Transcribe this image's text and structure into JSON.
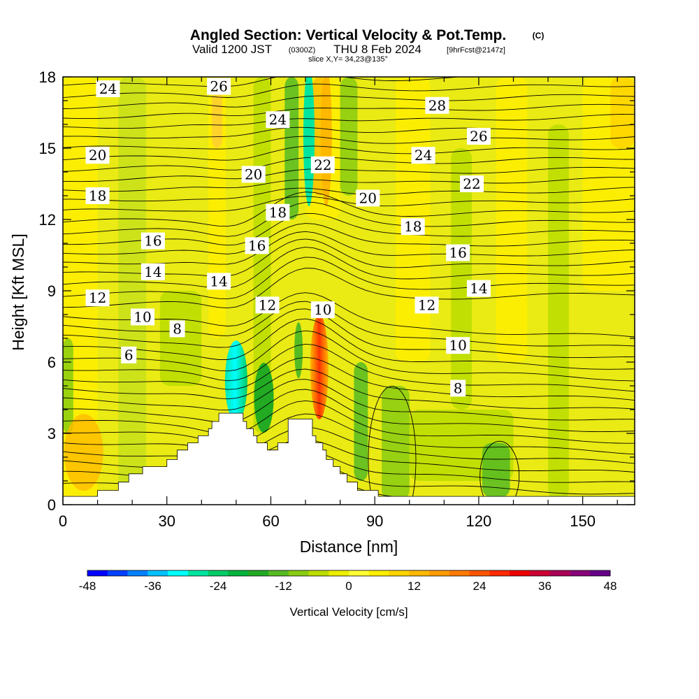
{
  "header": {
    "title": "Angled Section: Vertical Velocity & Pot.Temp.",
    "title_mark": "(C)",
    "valid_a": "Valid 1200 JST",
    "valid_z": "(0300Z)",
    "valid_b": "THU 8 Feb 2024",
    "valid_fcst": "[9hrFcst@2147z]",
    "slice": "slice X,Y= 34,23@135°"
  },
  "chart_data": {
    "type": "heatmap",
    "title": "Angled Section: Vertical Velocity & Pot.Temp.",
    "xlabel": "Distance [nm]",
    "ylabel": "Height [Kft MSL]",
    "xlim": [
      0,
      165
    ],
    "ylim": [
      0,
      18
    ],
    "x_ticks": [
      "0",
      "30",
      "60",
      "90",
      "120",
      "150"
    ],
    "x_tick_values": [
      0,
      30,
      60,
      90,
      120,
      150
    ],
    "y_ticks": [
      "0",
      "3",
      "6",
      "9",
      "12",
      "15",
      "18"
    ],
    "y_tick_values": [
      0,
      3,
      6,
      9,
      12,
      15,
      18
    ],
    "terrain_steps": [
      [
        0,
        0.35
      ],
      [
        10,
        0.35
      ],
      [
        10,
        0.6
      ],
      [
        16,
        0.6
      ],
      [
        16,
        0.95
      ],
      [
        19,
        0.95
      ],
      [
        19,
        1.3
      ],
      [
        23,
        1.3
      ],
      [
        23,
        1.6
      ],
      [
        30,
        1.6
      ],
      [
        30,
        1.9
      ],
      [
        33,
        1.9
      ],
      [
        33,
        2.3
      ],
      [
        36,
        2.3
      ],
      [
        36,
        2.6
      ],
      [
        39,
        2.6
      ],
      [
        39,
        2.9
      ],
      [
        42,
        2.9
      ],
      [
        42,
        3.2
      ],
      [
        43,
        3.2
      ],
      [
        43,
        3.5
      ],
      [
        45,
        3.5
      ],
      [
        45,
        3.85
      ],
      [
        52,
        3.85
      ],
      [
        52,
        3.5
      ],
      [
        53,
        3.5
      ],
      [
        53,
        3.2
      ],
      [
        55,
        3.2
      ],
      [
        55,
        2.9
      ],
      [
        56,
        2.9
      ],
      [
        56,
        2.6
      ],
      [
        59,
        2.6
      ],
      [
        59,
        2.3
      ],
      [
        62,
        2.3
      ],
      [
        62,
        2.6
      ],
      [
        65,
        2.6
      ],
      [
        65,
        3.6
      ],
      [
        72,
        3.6
      ],
      [
        72,
        2.9
      ],
      [
        73,
        2.9
      ],
      [
        73,
        2.6
      ],
      [
        75,
        2.6
      ],
      [
        75,
        2.3
      ],
      [
        76,
        2.3
      ],
      [
        76,
        1.9
      ],
      [
        78,
        1.9
      ],
      [
        78,
        1.6
      ],
      [
        80,
        1.6
      ],
      [
        80,
        1.3
      ],
      [
        82,
        1.3
      ],
      [
        82,
        0.95
      ],
      [
        85,
        0.95
      ],
      [
        85,
        0.6
      ],
      [
        91,
        0.6
      ],
      [
        91,
        0.35
      ],
      [
        165,
        0.35
      ]
    ],
    "contour_levels": [
      6,
      8,
      10,
      12,
      14,
      16,
      18,
      20,
      22,
      24,
      26,
      28
    ],
    "contour_labels": [
      {
        "text": "24",
        "x": 13,
        "y": 17.5
      },
      {
        "text": "26",
        "x": 45,
        "y": 17.6
      },
      {
        "text": "24",
        "x": 62,
        "y": 16.2
      },
      {
        "text": "28",
        "x": 108,
        "y": 16.8
      },
      {
        "text": "26",
        "x": 120,
        "y": 15.5
      },
      {
        "text": "20",
        "x": 10,
        "y": 14.7
      },
      {
        "text": "24",
        "x": 104,
        "y": 14.7
      },
      {
        "text": "22",
        "x": 75,
        "y": 14.3
      },
      {
        "text": "20",
        "x": 55,
        "y": 13.9
      },
      {
        "text": "22",
        "x": 118,
        "y": 13.5
      },
      {
        "text": "18",
        "x": 10,
        "y": 13.0
      },
      {
        "text": "20",
        "x": 88,
        "y": 12.9
      },
      {
        "text": "18",
        "x": 62,
        "y": 12.3
      },
      {
        "text": "18",
        "x": 101,
        "y": 11.7
      },
      {
        "text": "16",
        "x": 26,
        "y": 11.1
      },
      {
        "text": "16",
        "x": 56,
        "y": 10.9
      },
      {
        "text": "16",
        "x": 114,
        "y": 10.6
      },
      {
        "text": "14",
        "x": 26,
        "y": 9.8
      },
      {
        "text": "14",
        "x": 45,
        "y": 9.4
      },
      {
        "text": "14",
        "x": 120,
        "y": 9.1
      },
      {
        "text": "12",
        "x": 10,
        "y": 8.7
      },
      {
        "text": "12",
        "x": 59,
        "y": 8.4
      },
      {
        "text": "12",
        "x": 105,
        "y": 8.4
      },
      {
        "text": "10",
        "x": 75,
        "y": 8.2
      },
      {
        "text": "10",
        "x": 23,
        "y": 7.9
      },
      {
        "text": "8",
        "x": 33,
        "y": 7.4
      },
      {
        "text": "10",
        "x": 114,
        "y": 6.7
      },
      {
        "text": "6",
        "x": 19,
        "y": 6.3
      },
      {
        "text": "8",
        "x": 114,
        "y": 4.9
      }
    ],
    "legend": {
      "title": "Vertical Velocity [cm/s]",
      "labels": [
        "-48",
        "-36",
        "-24",
        "-12",
        "0",
        "12",
        "24",
        "36",
        "48"
      ],
      "colors": [
        "#0000ff",
        "#0040ff",
        "#0080ff",
        "#00c0ff",
        "#00ffff",
        "#00e6a0",
        "#00cc66",
        "#00b33c",
        "#22aa22",
        "#55bb22",
        "#88cc11",
        "#bbdd00",
        "#eeee00",
        "#ffff33",
        "#ffee00",
        "#ffd400",
        "#ffb800",
        "#ff9c00",
        "#ff7a00",
        "#ff5500",
        "#ff2a00",
        "#ee0000",
        "#cc0033",
        "#aa0055",
        "#880077",
        "#660088"
      ]
    }
  }
}
